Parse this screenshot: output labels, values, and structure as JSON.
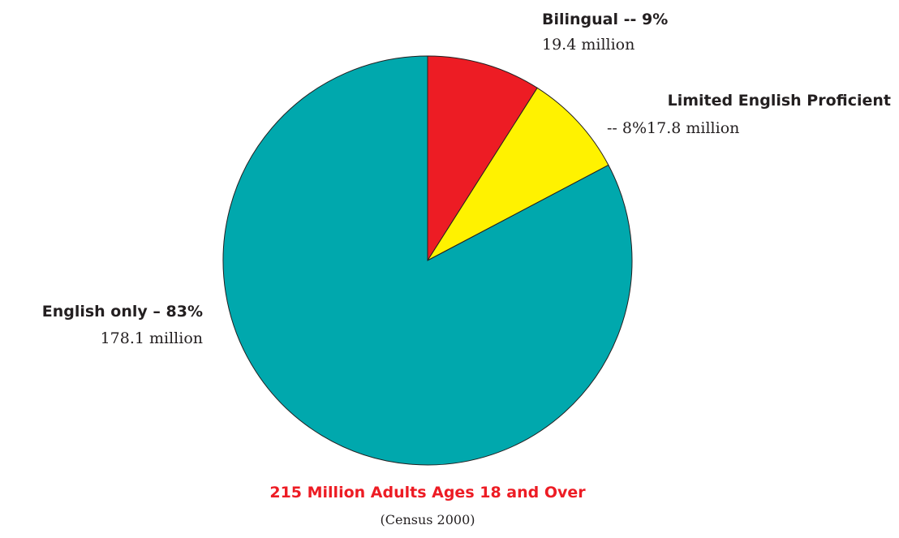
{
  "chart_data": {
    "type": "pie",
    "slices": [
      {
        "name": "Bilingual",
        "percent_label": "-- 9%",
        "count_label": "19.4 million",
        "value": 19.4,
        "color": "#ed1c24"
      },
      {
        "name": "Limited English Proficient",
        "percent_label": "-- 8%",
        "count_label": "17.8 million",
        "value": 17.8,
        "color": "#fff200"
      },
      {
        "name": "English only",
        "percent_label": "– 83%",
        "count_label": "178.1 million",
        "value": 178.1,
        "color": "#00a8ad"
      }
    ],
    "caption": "215 Million Adults Ages 18 and Over",
    "caption_color": "#ed1c24",
    "source": "(Census 2000)"
  }
}
